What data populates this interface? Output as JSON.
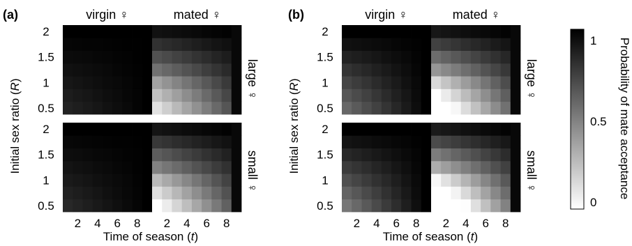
{
  "chart_data": {
    "type": "heatmap",
    "panels": [
      {
        "label": "(a)",
        "virgin_ramp": 0.15,
        "mated_ramp": 0.75
      },
      {
        "label": "(b)",
        "virgin_ramp": 0.45,
        "mated_ramp": 1.0
      }
    ],
    "column_titles": [
      "virgin ♀",
      "mated ♀"
    ],
    "row_labels": [
      "large ♀",
      "small ♀"
    ],
    "x": [
      1,
      2,
      3,
      4,
      5,
      6,
      7,
      8,
      9
    ],
    "xticks": [
      "2",
      "4",
      "6",
      "8"
    ],
    "y": [
      0.5,
      0.75,
      1.0,
      1.25,
      1.5,
      1.75,
      2.0
    ],
    "yticks": [
      "0.5",
      "1",
      "1.5",
      "2"
    ],
    "xlabel": "Time of season",
    "xlabel_var": "t",
    "ylabel": "Initial sex ratio",
    "ylabel_var": "R",
    "colorbar": {
      "label": "Probability of mate acceptance",
      "ticks": [
        "0",
        "0.5",
        "1"
      ],
      "range": [
        0,
        1
      ],
      "low_color": "#ffffff",
      "high_color": "#000000"
    }
  }
}
